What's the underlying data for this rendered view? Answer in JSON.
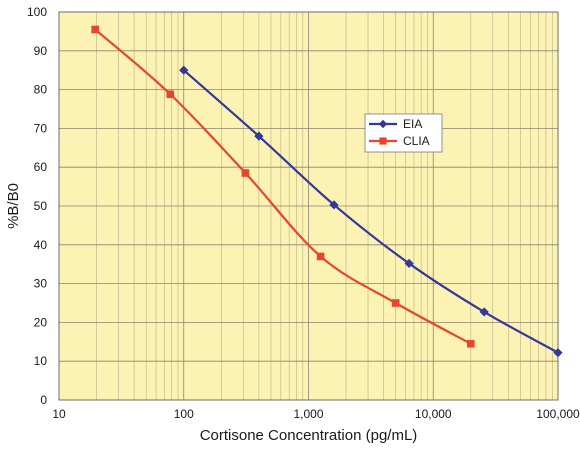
{
  "chart_data": {
    "type": "line",
    "xlabel": "Cortisone Concentration (pg/mL)",
    "ylabel": "%B/B0",
    "x_scale": "log",
    "xlim": [
      10,
      100000
    ],
    "ylim": [
      0,
      100
    ],
    "x_ticks": [
      10,
      100,
      1000,
      10000,
      100000
    ],
    "x_tick_labels": [
      "10",
      "100",
      "1,000",
      "10,000",
      "100,000"
    ],
    "y_ticks": [
      0,
      10,
      20,
      30,
      40,
      50,
      60,
      70,
      80,
      90,
      100
    ],
    "y_tick_labels": [
      "0",
      "10",
      "20",
      "30",
      "40",
      "50",
      "60",
      "70",
      "80",
      "90",
      "100"
    ],
    "grid": true,
    "plot_background": "#fcf2b4",
    "legend_position": "right-middle",
    "series": [
      {
        "name": "EIA",
        "color": "#33389a",
        "marker": "diamond",
        "x": [
          100,
          400,
          1600,
          6400,
          25600,
          100000
        ],
        "y": [
          85,
          68,
          50.3,
          35.2,
          22.7,
          12.2
        ]
      },
      {
        "name": "CLIA",
        "color": "#e8452c",
        "marker": "square",
        "x": [
          19.5,
          78,
          312,
          1250,
          5000,
          20000
        ],
        "y": [
          95.5,
          78.8,
          58.5,
          37,
          25,
          14.5
        ]
      }
    ]
  }
}
